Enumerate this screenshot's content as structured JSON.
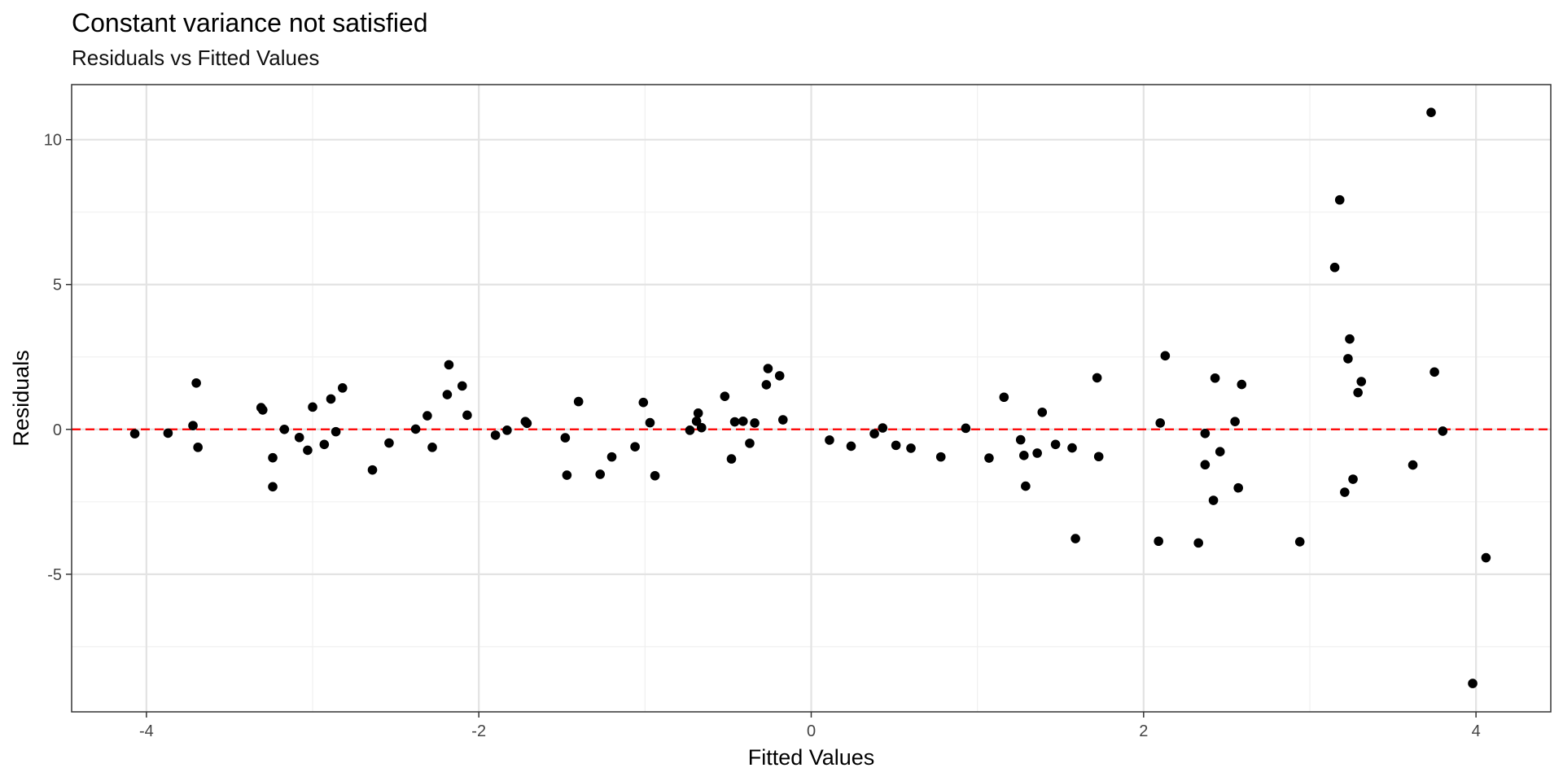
{
  "chart_data": {
    "type": "scatter",
    "title": "Constant variance not satisfied",
    "subtitle": "Residuals vs Fitted Values",
    "xlabel": "Fitted Values",
    "ylabel": "Residuals",
    "xlim": [
      -4.45,
      4.45
    ],
    "ylim": [
      -9.75,
      11.9
    ],
    "x_ticks": [
      -4,
      -2,
      0,
      2,
      4
    ],
    "x_tick_labels": [
      "-4",
      "-2",
      "0",
      "2",
      "4"
    ],
    "y_ticks": [
      -5,
      0,
      5,
      10
    ],
    "y_tick_labels": [
      "-5",
      "0",
      "5",
      "10"
    ],
    "grid": true,
    "reference_line": {
      "y": 0,
      "style": "dashed",
      "color": "#ff0000"
    },
    "point_color": "#000000",
    "panel_border_color": "#333333",
    "grid_major_color": "#e3e3e3",
    "grid_minor_color": "#f0f0f0",
    "points": [
      {
        "x": -4.07,
        "y": -0.15
      },
      {
        "x": -3.87,
        "y": -0.13
      },
      {
        "x": -3.72,
        "y": 0.13
      },
      {
        "x": -3.7,
        "y": 1.6
      },
      {
        "x": -3.69,
        "y": -0.62
      },
      {
        "x": -3.31,
        "y": 0.75
      },
      {
        "x": -3.3,
        "y": 0.67
      },
      {
        "x": -3.24,
        "y": -0.98
      },
      {
        "x": -3.24,
        "y": -1.98
      },
      {
        "x": -3.17,
        "y": 0.0
      },
      {
        "x": -3.08,
        "y": -0.28
      },
      {
        "x": -3.03,
        "y": -0.72
      },
      {
        "x": -3.0,
        "y": 0.77
      },
      {
        "x": -2.93,
        "y": -0.52
      },
      {
        "x": -2.89,
        "y": 1.05
      },
      {
        "x": -2.86,
        "y": -0.08
      },
      {
        "x": -2.82,
        "y": 1.43
      },
      {
        "x": -2.64,
        "y": -1.4
      },
      {
        "x": -2.54,
        "y": -0.47
      },
      {
        "x": -2.38,
        "y": 0.01
      },
      {
        "x": -2.31,
        "y": 0.47
      },
      {
        "x": -2.28,
        "y": -0.62
      },
      {
        "x": -2.19,
        "y": 1.2
      },
      {
        "x": -2.18,
        "y": 2.23
      },
      {
        "x": -2.1,
        "y": 1.5
      },
      {
        "x": -2.07,
        "y": 0.49
      },
      {
        "x": -1.9,
        "y": -0.2
      },
      {
        "x": -1.83,
        "y": -0.03
      },
      {
        "x": -1.72,
        "y": 0.27
      },
      {
        "x": -1.71,
        "y": 0.21
      },
      {
        "x": -1.48,
        "y": -0.29
      },
      {
        "x": -1.47,
        "y": -1.58
      },
      {
        "x": -1.4,
        "y": 0.96
      },
      {
        "x": -1.27,
        "y": -1.55
      },
      {
        "x": -1.2,
        "y": -0.95
      },
      {
        "x": -1.06,
        "y": -0.6
      },
      {
        "x": -1.01,
        "y": 0.93
      },
      {
        "x": -0.97,
        "y": 0.23
      },
      {
        "x": -0.94,
        "y": -1.6
      },
      {
        "x": -0.73,
        "y": -0.03
      },
      {
        "x": -0.69,
        "y": 0.28
      },
      {
        "x": -0.68,
        "y": 0.56
      },
      {
        "x": -0.66,
        "y": 0.06
      },
      {
        "x": -0.52,
        "y": 1.14
      },
      {
        "x": -0.48,
        "y": -1.02
      },
      {
        "x": -0.46,
        "y": 0.26
      },
      {
        "x": -0.41,
        "y": 0.28
      },
      {
        "x": -0.37,
        "y": -0.48
      },
      {
        "x": -0.34,
        "y": 0.22
      },
      {
        "x": -0.27,
        "y": 1.54
      },
      {
        "x": -0.26,
        "y": 2.1
      },
      {
        "x": -0.19,
        "y": 1.85
      },
      {
        "x": -0.17,
        "y": 0.33
      },
      {
        "x": 0.11,
        "y": -0.37
      },
      {
        "x": 0.24,
        "y": -0.58
      },
      {
        "x": 0.38,
        "y": -0.15
      },
      {
        "x": 0.43,
        "y": 0.05
      },
      {
        "x": 0.51,
        "y": -0.55
      },
      {
        "x": 0.6,
        "y": -0.65
      },
      {
        "x": 0.78,
        "y": -0.95
      },
      {
        "x": 0.93,
        "y": 0.04
      },
      {
        "x": 1.07,
        "y": -0.99
      },
      {
        "x": 1.16,
        "y": 1.11
      },
      {
        "x": 1.26,
        "y": -0.36
      },
      {
        "x": 1.28,
        "y": -0.9
      },
      {
        "x": 1.29,
        "y": -1.96
      },
      {
        "x": 1.36,
        "y": -0.82
      },
      {
        "x": 1.39,
        "y": 0.59
      },
      {
        "x": 1.47,
        "y": -0.52
      },
      {
        "x": 1.57,
        "y": -0.64
      },
      {
        "x": 1.59,
        "y": -3.77
      },
      {
        "x": 1.72,
        "y": 1.78
      },
      {
        "x": 1.73,
        "y": -0.94
      },
      {
        "x": 2.09,
        "y": -3.86
      },
      {
        "x": 2.1,
        "y": 0.22
      },
      {
        "x": 2.13,
        "y": 2.54
      },
      {
        "x": 2.33,
        "y": -3.92
      },
      {
        "x": 2.37,
        "y": -0.14
      },
      {
        "x": 2.37,
        "y": -1.22
      },
      {
        "x": 2.42,
        "y": -2.45
      },
      {
        "x": 2.43,
        "y": 1.77
      },
      {
        "x": 2.46,
        "y": -0.77
      },
      {
        "x": 2.55,
        "y": 0.27
      },
      {
        "x": 2.57,
        "y": -2.02
      },
      {
        "x": 2.59,
        "y": 1.55
      },
      {
        "x": 2.94,
        "y": -3.88
      },
      {
        "x": 3.15,
        "y": 5.59
      },
      {
        "x": 3.18,
        "y": 7.92
      },
      {
        "x": 3.21,
        "y": -2.17
      },
      {
        "x": 3.23,
        "y": 2.44
      },
      {
        "x": 3.24,
        "y": 3.12
      },
      {
        "x": 3.26,
        "y": -1.72
      },
      {
        "x": 3.29,
        "y": 1.27
      },
      {
        "x": 3.31,
        "y": 1.65
      },
      {
        "x": 3.62,
        "y": -1.23
      },
      {
        "x": 3.73,
        "y": 10.94
      },
      {
        "x": 3.75,
        "y": 1.98
      },
      {
        "x": 3.8,
        "y": -0.06
      },
      {
        "x": 3.98,
        "y": -8.77
      },
      {
        "x": 4.06,
        "y": -4.43
      }
    ]
  }
}
